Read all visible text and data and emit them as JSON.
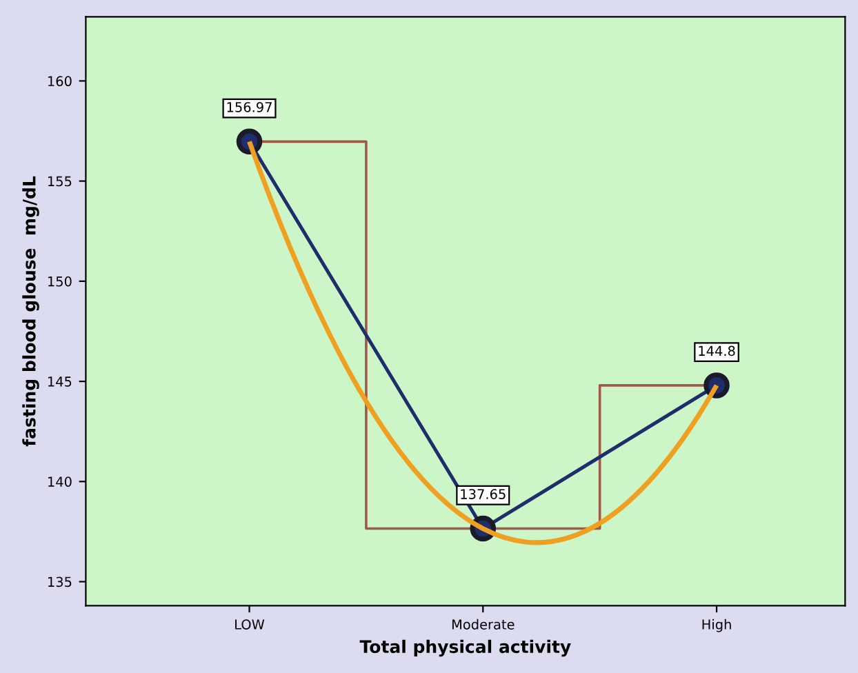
{
  "chart_data": {
    "type": "line",
    "xlabel": "Total physical activity",
    "ylabel": "fasting blood glouse  mg/dL",
    "categories": [
      "LOW",
      "Moderate",
      "High"
    ],
    "series": [
      {
        "type": "step",
        "color": "#a05848",
        "values": [
          156.97,
          137.65,
          144.8
        ]
      },
      {
        "type": "line",
        "color": "#f0a020",
        "values": [
          156.97,
          137.65,
          144.8
        ]
      },
      {
        "color": "#1f2d6b",
        "marker": "circle",
        "values": [
          156.97,
          137.65,
          144.8
        ],
        "value_labels": [
          "156.97",
          "137.65",
          "144.8"
        ]
      }
    ],
    "ylim": [
      133.8,
      163.2
    ],
    "yticks": [
      135,
      140,
      145,
      150,
      155,
      160
    ],
    "grid": false,
    "legend": false
  }
}
